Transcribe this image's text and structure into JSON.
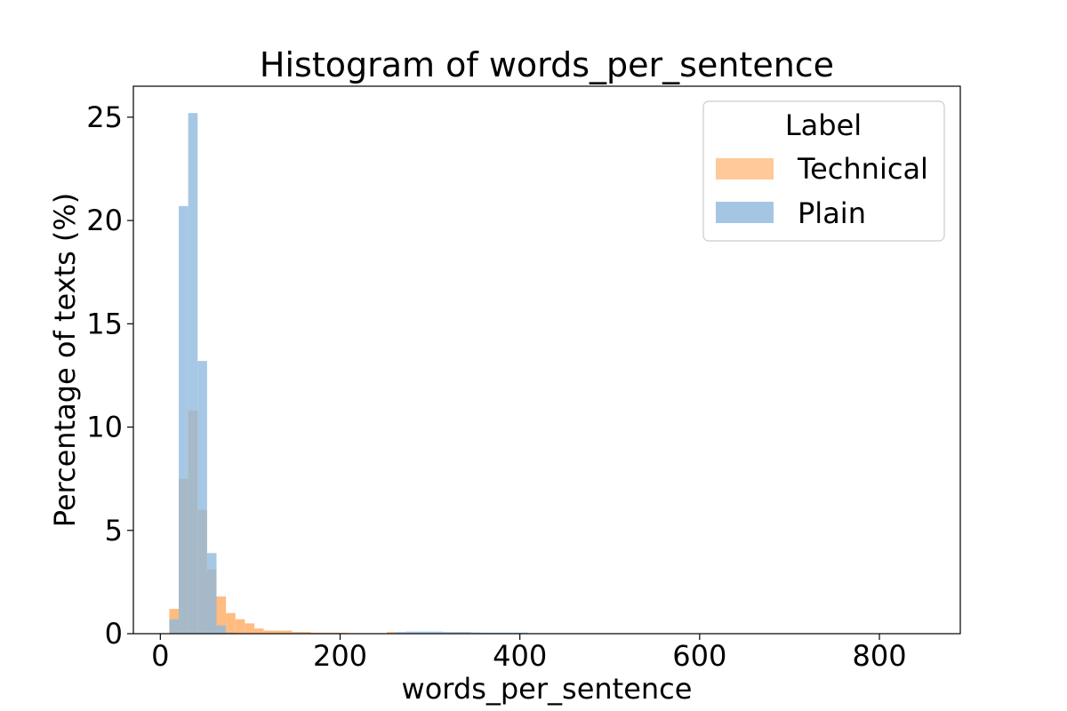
{
  "chart_data": {
    "type": "bar",
    "title": "Histogram of words_per_sentence",
    "xlabel": "words_per_sentence",
    "ylabel": "Percentage of texts (%)",
    "xlim": [
      -30,
      890
    ],
    "ylim": [
      0,
      26.5
    ],
    "xticks": [
      0,
      200,
      400,
      600,
      800
    ],
    "yticks": [
      0,
      5,
      10,
      15,
      20,
      25
    ],
    "bin_width": 10.5,
    "grid": false,
    "legend": {
      "title": "Label",
      "placement": "top-right",
      "entries": [
        "Technical",
        "Plain"
      ]
    },
    "series": [
      {
        "name": "Technical",
        "color": "#ffbb80",
        "bins": [
          {
            "x0": 10,
            "value": 1.2
          },
          {
            "x0": 20.5,
            "value": 7.5
          },
          {
            "x0": 31,
            "value": 10.8
          },
          {
            "x0": 41.5,
            "value": 6.0
          },
          {
            "x0": 52,
            "value": 3.1
          },
          {
            "x0": 62.5,
            "value": 1.8
          },
          {
            "x0": 73,
            "value": 1.0
          },
          {
            "x0": 83.5,
            "value": 0.7
          },
          {
            "x0": 94,
            "value": 0.5
          },
          {
            "x0": 104.5,
            "value": 0.25
          },
          {
            "x0": 115,
            "value": 0.15
          },
          {
            "x0": 125.5,
            "value": 0.15
          },
          {
            "x0": 136,
            "value": 0.15
          },
          {
            "x0": 146.5,
            "value": 0.08
          },
          {
            "x0": 157,
            "value": 0.08
          },
          {
            "x0": 167.5,
            "value": 0.05
          },
          {
            "x0": 178,
            "value": 0.05
          },
          {
            "x0": 188.5,
            "value": 0.05
          },
          {
            "x0": 199,
            "value": 0.04
          },
          {
            "x0": 252,
            "value": 0.08
          }
        ]
      },
      {
        "name": "Plain",
        "color": "#8db8dc",
        "bins": [
          {
            "x0": 10,
            "value": 0.7
          },
          {
            "x0": 20.5,
            "value": 20.7
          },
          {
            "x0": 31,
            "value": 25.2
          },
          {
            "x0": 41.5,
            "value": 13.2
          },
          {
            "x0": 52,
            "value": 3.9
          },
          {
            "x0": 62.5,
            "value": 0.4
          },
          {
            "x0": 73,
            "value": 0.05
          },
          {
            "x0": 83.5,
            "value": 0.03
          },
          {
            "x0": 262,
            "value": 0.08
          },
          {
            "x0": 272.5,
            "value": 0.1
          },
          {
            "x0": 283,
            "value": 0.1
          },
          {
            "x0": 293.5,
            "value": 0.1
          },
          {
            "x0": 304,
            "value": 0.1
          },
          {
            "x0": 314.5,
            "value": 0.08
          },
          {
            "x0": 325,
            "value": 0.08
          },
          {
            "x0": 335.5,
            "value": 0.08
          },
          {
            "x0": 346,
            "value": 0.06
          },
          {
            "x0": 356.5,
            "value": 0.05
          },
          {
            "x0": 367,
            "value": 0.05
          },
          {
            "x0": 377.5,
            "value": 0.05
          },
          {
            "x0": 388,
            "value": 0.05
          },
          {
            "x0": 398.5,
            "value": 0.05
          }
        ]
      }
    ]
  }
}
